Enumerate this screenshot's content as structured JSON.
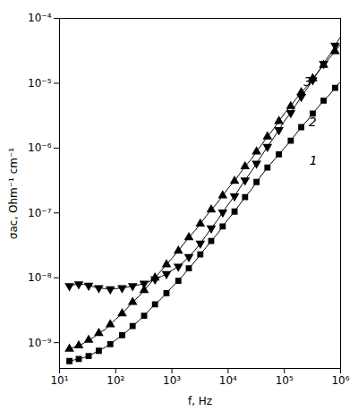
{
  "chart_data": {
    "type": "line",
    "xlabel": "f, Hz",
    "ylabel": "σac, Ohm⁻¹ cm⁻¹",
    "log": true,
    "grid": false,
    "xlim": [
      10,
      1000000
    ],
    "ylim": [
      4e-10,
      0.0001
    ],
    "xticks": [
      {
        "value": 10,
        "label": "10¹"
      },
      {
        "value": 100,
        "label": "10²"
      },
      {
        "value": 1000,
        "label": "10³"
      },
      {
        "value": 10000,
        "label": "10⁴"
      },
      {
        "value": 100000,
        "label": "10⁵"
      },
      {
        "value": 1000000,
        "label": "10⁶"
      }
    ],
    "yticks": [
      {
        "value": 1e-09,
        "label": "10⁻⁹"
      },
      {
        "value": 1e-08,
        "label": "10⁻⁸"
      },
      {
        "value": 1e-07,
        "label": "10⁻⁷"
      },
      {
        "value": 1e-06,
        "label": "10⁻⁶"
      },
      {
        "value": 1e-05,
        "label": "10⁻⁵"
      },
      {
        "value": 0.0001,
        "label": "10⁻⁴"
      }
    ],
    "x": [
      15,
      18,
      22,
      27,
      33,
      40,
      50,
      65,
      80,
      100,
      130,
      160,
      200,
      260,
      320,
      400,
      500,
      650,
      800,
      1000,
      1300,
      1600,
      2000,
      2600,
      3200,
      4000,
      5000,
      6500,
      8000,
      10000,
      13000,
      16000,
      20000,
      26000,
      32000,
      40000,
      50000,
      65000,
      80000,
      100000,
      130000,
      160000,
      200000,
      260000,
      320000,
      400000,
      500000,
      650000,
      800000,
      1000000
    ],
    "series": [
      {
        "name": "1",
        "color": "#000000",
        "marker": "square",
        "values": [
          5.2e-10,
          5.4e-10,
          5.6e-10,
          5.9e-10,
          6.2e-10,
          6.8e-10,
          7.5e-10,
          8.5e-10,
          9.5e-10,
          1.1e-09,
          1.3e-09,
          1.5e-09,
          1.8e-09,
          2.2e-09,
          2.6e-09,
          3.2e-09,
          3.9e-09,
          4.8e-09,
          5.8e-09,
          7.2e-09,
          9e-09,
          1.1e-08,
          1.4e-08,
          1.8e-08,
          2.3e-08,
          2.9e-08,
          3.7e-08,
          4.8e-08,
          6.2e-08,
          8e-08,
          1.05e-07,
          1.35e-07,
          1.75e-07,
          2.3e-07,
          3e-07,
          3.9e-07,
          5e-07,
          6.5e-07,
          8e-07,
          1e-06,
          1.3e-06,
          1.65e-06,
          2.1e-06,
          2.7e-06,
          3.4e-06,
          4.3e-06,
          5.4e-06,
          6.8e-06,
          8.5e-06,
          1.05e-05
        ]
      },
      {
        "name": "2",
        "color": "#000000",
        "marker": "triangle-up",
        "values": [
          8e-10,
          8.5e-10,
          9e-10,
          9.8e-10,
          1.1e-09,
          1.2e-09,
          1.4e-09,
          1.6e-09,
          1.9e-09,
          2.3e-09,
          2.8e-09,
          3.4e-09,
          4.2e-09,
          5.2e-09,
          6.4e-09,
          8e-09,
          1e-08,
          1.3e-08,
          1.6e-08,
          2e-08,
          2.6e-08,
          3.3e-08,
          4.2e-08,
          5.4e-08,
          6.8e-08,
          8.8e-08,
          1.12e-07,
          1.45e-07,
          1.85e-07,
          2.4e-07,
          3.1e-07,
          4e-07,
          5.2e-07,
          6.8e-07,
          8.8e-07,
          1.15e-06,
          1.5e-06,
          2e-06,
          2.6e-06,
          3.4e-06,
          4.4e-06,
          5.7e-06,
          7.2e-06,
          9.2e-06,
          1.18e-05,
          1.5e-05,
          1.9e-05,
          2.5e-05,
          3.1e-05,
          4e-05
        ]
      },
      {
        "name": "3",
        "color": "#000000",
        "marker": "triangle-down",
        "values": [
          7.5e-09,
          7.8e-09,
          8e-09,
          7.9e-09,
          7.6e-09,
          7.3e-09,
          7e-09,
          6.8e-09,
          6.7e-09,
          6.8e-09,
          7e-09,
          7.2e-09,
          7.5e-09,
          7.8e-09,
          8.2e-09,
          8.8e-09,
          9.5e-09,
          1.05e-08,
          1.15e-08,
          1.3e-08,
          1.5e-08,
          1.75e-08,
          2.1e-08,
          2.7e-08,
          3.4e-08,
          4.4e-08,
          5.8e-08,
          7.8e-08,
          1.02e-07,
          1.35e-07,
          1.82e-07,
          2.4e-07,
          3.2e-07,
          4.4e-07,
          5.8e-07,
          7.8e-07,
          1.05e-06,
          1.45e-06,
          1.9e-06,
          2.6e-06,
          3.5e-06,
          4.6e-06,
          6.2e-06,
          8.5e-06,
          1.12e-05,
          1.5e-05,
          2e-05,
          2.8e-05,
          3.8e-05,
          5.2e-05
        ]
      }
    ],
    "annotations": [
      {
        "text": "1",
        "x": 280000,
        "y": 5.5e-07
      },
      {
        "text": "2",
        "x": 270000,
        "y": 2.2e-06
      },
      {
        "text": "3",
        "x": 220000,
        "y": 9e-06
      }
    ]
  }
}
